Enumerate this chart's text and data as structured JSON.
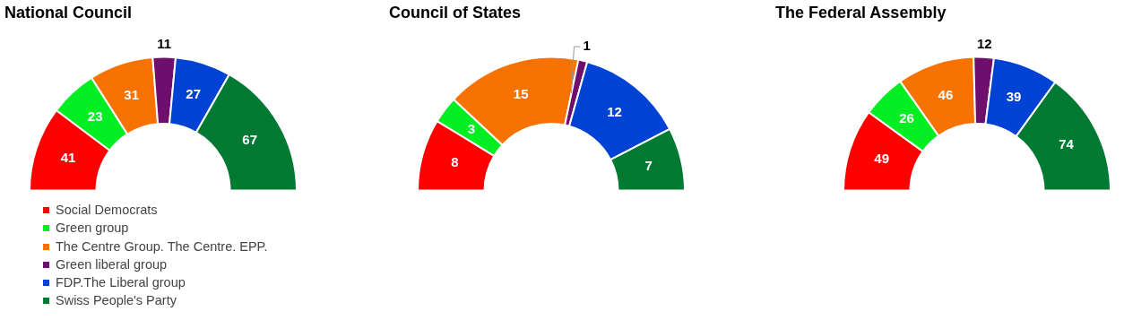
{
  "chart_data": [
    {
      "type": "donut",
      "title": "National Council",
      "categories": [
        "Social Democrats",
        "Green group",
        "The Centre Group. The Centre. EPP.",
        "Green liberal group",
        "FDP.The Liberal group",
        "Swiss People's Party"
      ],
      "values": [
        41,
        23,
        31,
        11,
        27,
        67
      ],
      "colors": [
        "#ff0000",
        "#00ee22",
        "#f77200",
        "#6e0f6e",
        "#0042d4",
        "#007a33"
      ],
      "data_labels": true,
      "legend": "bottom"
    },
    {
      "type": "donut",
      "title": "Council of States",
      "categories": [
        null,
        null,
        null,
        null,
        null,
        null
      ],
      "values": [
        8,
        3,
        15,
        1,
        12,
        7
      ],
      "colors": [
        "#ff0000",
        "#00ee22",
        "#f77200",
        "#6e0f6e",
        "#0042d4",
        "#007a33"
      ],
      "data_labels": true,
      "legend": false
    },
    {
      "type": "donut",
      "title": "The Federal Assembly",
      "categories": [
        null,
        null,
        null,
        null,
        null,
        null
      ],
      "values": [
        49,
        26,
        46,
        12,
        39,
        74
      ],
      "colors": [
        "#ff0000",
        "#00ee22",
        "#f77200",
        "#6e0f6e",
        "#0042d4",
        "#007a33"
      ],
      "data_labels": true,
      "legend": false
    }
  ]
}
